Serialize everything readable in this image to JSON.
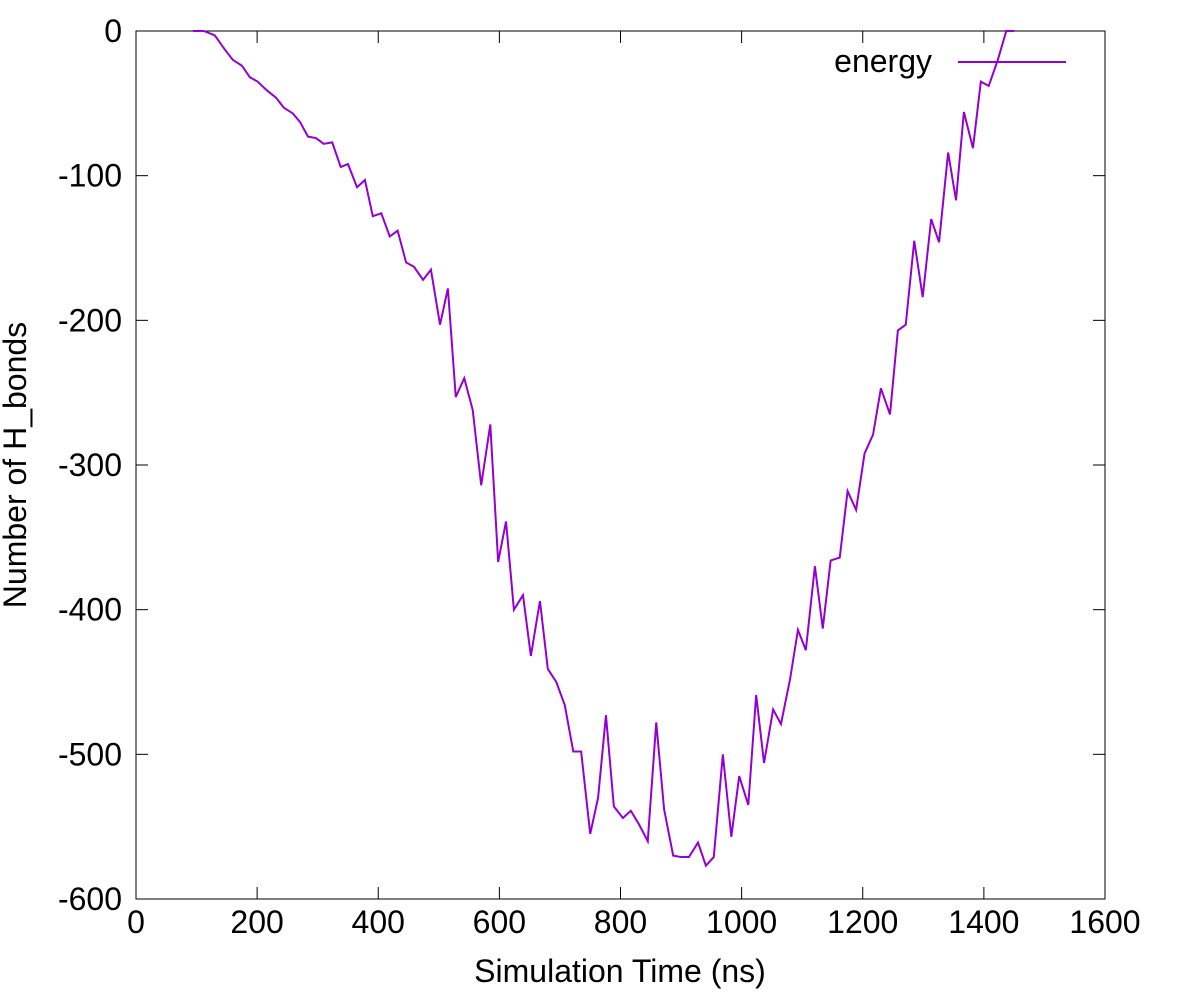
{
  "chart_data": {
    "type": "line",
    "xlabel": "Simulation Time (ns)",
    "ylabel": "Number of H_bonds",
    "x": [
      94,
      112,
      130,
      147,
      160,
      175,
      188,
      201,
      216,
      231,
      244,
      259,
      271,
      284,
      297,
      310,
      324,
      338,
      350,
      365,
      378,
      391,
      405,
      419,
      432,
      446,
      459,
      474,
      487,
      502,
      515,
      528,
      542,
      556,
      570,
      585,
      598,
      611,
      624,
      639,
      652,
      667,
      680,
      694,
      708,
      722,
      735,
      750,
      763,
      776,
      789,
      804,
      817,
      830,
      845,
      859,
      872,
      887,
      900,
      913,
      928,
      941,
      954,
      969,
      983,
      996,
      1011,
      1024,
      1037,
      1052,
      1065,
      1080,
      1093,
      1106,
      1121,
      1134,
      1147,
      1162,
      1175,
      1189,
      1203,
      1217,
      1230,
      1245,
      1258,
      1271,
      1285,
      1299,
      1313,
      1326,
      1341,
      1354,
      1367,
      1382,
      1395,
      1408,
      1423,
      1437,
      1450
    ],
    "series": [
      {
        "name": "energy",
        "color": "#9400d3",
        "values": [
          0,
          0,
          -3,
          -13,
          -20,
          -24,
          -32,
          -35,
          -41,
          -46,
          -53,
          -57,
          -63,
          -73,
          -74,
          -78,
          -77,
          -94,
          -92,
          -108,
          -103,
          -128,
          -126,
          -142,
          -138,
          -160,
          -163,
          -172,
          -165,
          -203,
          -178,
          -253,
          -240,
          -262,
          -314,
          -272,
          -367,
          -339,
          -400,
          -390,
          -432,
          -394,
          -441,
          -450,
          -466,
          -498,
          -498,
          -555,
          -530,
          -473,
          -536,
          -544,
          -539,
          -548,
          -560,
          -478,
          -538,
          -570,
          -571,
          -571,
          -561,
          -577,
          -571,
          -500,
          -557,
          -515,
          -535,
          -459,
          -506,
          -469,
          -479,
          -448,
          -414,
          -428,
          -370,
          -413,
          -366,
          -364,
          -318,
          -331,
          -292,
          -279,
          -247,
          -265,
          -207,
          -203,
          -145,
          -184,
          -130,
          -146,
          -84,
          -117,
          -56,
          -81,
          -35,
          -38,
          -20,
          0,
          0
        ]
      }
    ],
    "xlim": [
      0,
      1600
    ],
    "xticks": [
      0,
      200,
      400,
      600,
      800,
      1000,
      1200,
      1400,
      1600
    ],
    "ylim": [
      -600,
      0
    ],
    "yticks": [
      0,
      -100,
      -200,
      -300,
      -400,
      -500,
      -600
    ],
    "grid": false,
    "legend": "top-right"
  }
}
